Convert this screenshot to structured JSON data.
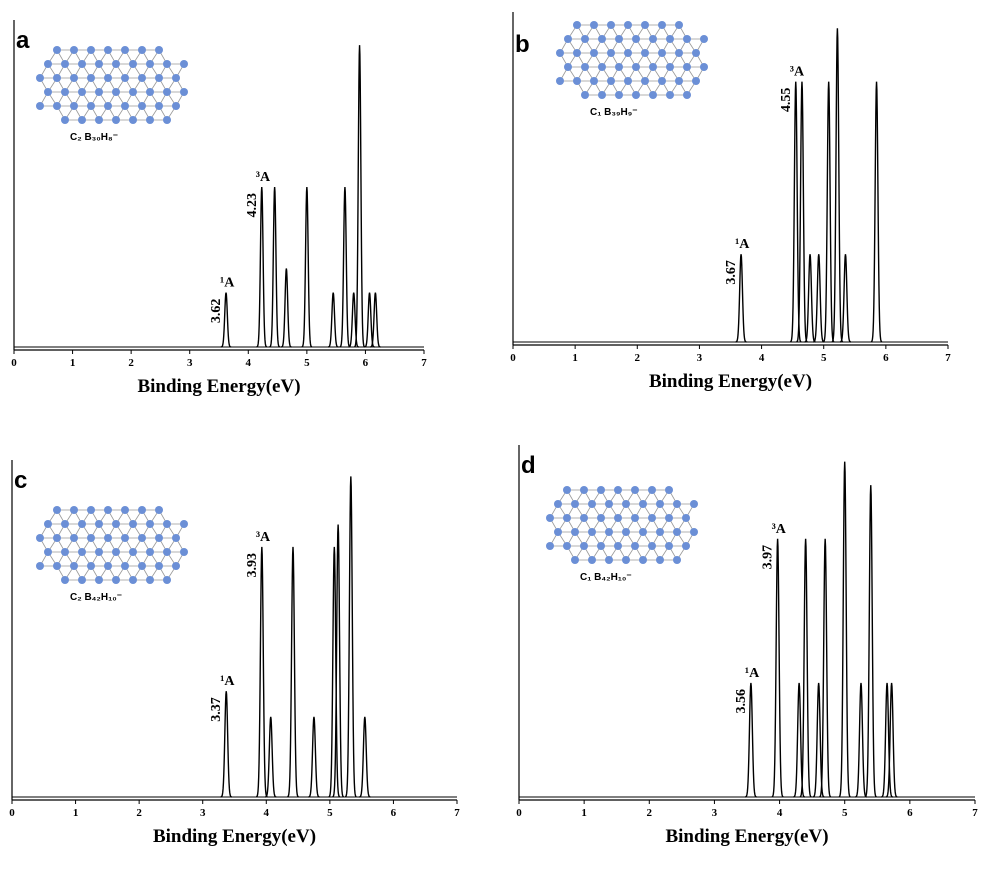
{
  "chart_data": [
    {
      "type": "peaks",
      "label": "a",
      "formula": "C₂ B₃₀H₈⁻",
      "xlabel": "Binding Energy(eV)",
      "color": "#000000",
      "xlim": [
        0,
        7
      ],
      "xticks": [
        0,
        1,
        2,
        3,
        4,
        5,
        6,
        7
      ],
      "ylim": [
        0,
        1.05
      ],
      "x": [
        3.62,
        4.23,
        4.45,
        4.65,
        5.0,
        5.45,
        5.65,
        5.8,
        5.9,
        6.07,
        6.17
      ],
      "values": [
        0.18,
        0.53,
        0.53,
        0.26,
        0.53,
        0.18,
        0.53,
        0.18,
        1.0,
        0.18,
        0.18
      ],
      "annotations": [
        {
          "x": 3.62,
          "state": "¹A"
        },
        {
          "x": 4.23,
          "state": "³A"
        }
      ]
    },
    {
      "type": "peaks",
      "label": "b",
      "formula": "C₁ B₃₉H₉⁻",
      "xlabel": "Binding Energy(eV)",
      "color": "#000000",
      "xlim": [
        0,
        7
      ],
      "xticks": [
        0,
        1,
        2,
        3,
        4,
        5,
        6,
        7
      ],
      "ylim": [
        0,
        1.02
      ],
      "x": [
        3.67,
        4.55,
        4.65,
        4.78,
        4.92,
        5.08,
        5.22,
        5.35,
        5.85
      ],
      "values": [
        0.28,
        0.83,
        0.83,
        0.28,
        0.28,
        0.83,
        1.0,
        0.28,
        0.83
      ],
      "annotations": [
        {
          "x": 3.67,
          "state": "¹A"
        },
        {
          "x": 4.55,
          "state": "³A"
        }
      ]
    },
    {
      "type": "peaks",
      "label": "c",
      "formula": "C₂ B₄₂H₁₀⁻",
      "xlabel": "Binding Energy(eV)",
      "color": "#000000",
      "xlim": [
        0,
        7
      ],
      "xticks": [
        0,
        1,
        2,
        3,
        4,
        5,
        6,
        7
      ],
      "ylim": [
        0,
        1.02
      ],
      "x": [
        3.37,
        3.93,
        4.07,
        4.42,
        4.75,
        5.07,
        5.13,
        5.33,
        5.55
      ],
      "values": [
        0.33,
        0.78,
        0.25,
        0.78,
        0.25,
        0.78,
        0.85,
        1.0,
        0.25
      ],
      "annotations": [
        {
          "x": 3.37,
          "state": "¹A"
        },
        {
          "x": 3.93,
          "state": "³A"
        }
      ]
    },
    {
      "type": "peaks",
      "label": "d",
      "formula": "C₁ B₄₂H₁₀⁻",
      "xlabel": "Binding Energy(eV)",
      "color": "#000000",
      "xlim": [
        0,
        7
      ],
      "xticks": [
        0,
        1,
        2,
        3,
        4,
        5,
        6,
        7
      ],
      "ylim": [
        0,
        1.02
      ],
      "x": [
        3.56,
        3.97,
        4.3,
        4.4,
        4.6,
        4.7,
        5.0,
        5.25,
        5.4,
        5.65,
        5.72
      ],
      "values": [
        0.34,
        0.77,
        0.34,
        0.77,
        0.34,
        0.77,
        1.0,
        0.34,
        0.93,
        0.34,
        0.34
      ],
      "annotations": [
        {
          "x": 3.56,
          "state": "¹A"
        },
        {
          "x": 3.97,
          "state": "³A"
        }
      ]
    }
  ]
}
